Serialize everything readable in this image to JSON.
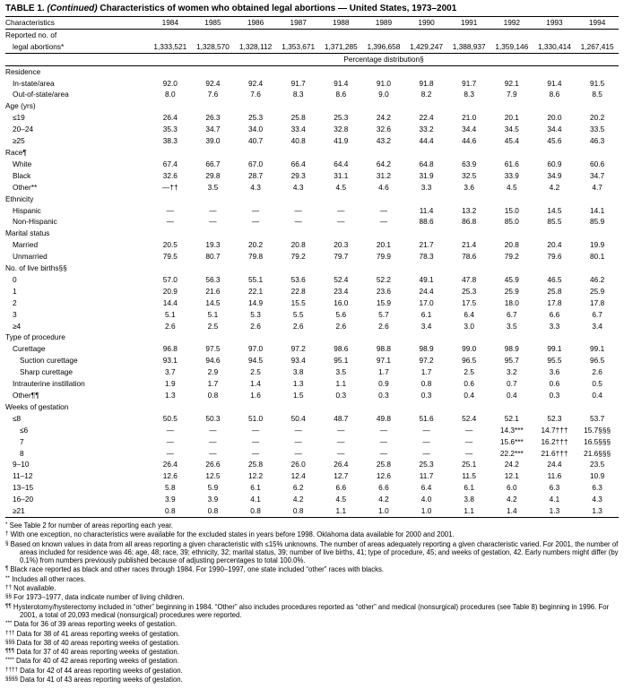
{
  "title": {
    "prefix": "TABLE 1.",
    "continued": "(Continued)",
    "text": "Characteristics of women who obtained legal abortions — United States, 1973–2001"
  },
  "table": {
    "characteristics_header": "Characteristics",
    "years": [
      "1984",
      "1985",
      "1986",
      "1987",
      "1988",
      "1989",
      "1990",
      "1991",
      "1992",
      "1993",
      "1994"
    ],
    "reported_row": {
      "label_line1": "Reported no. of",
      "label_line2": "legal abortions*",
      "values": [
        "1,333,521",
        "1,328,570",
        "1,328,112",
        "1,353,671",
        "1,371,285",
        "1,396,658",
        "1,429,247",
        "1,388,937",
        "1,359,146",
        "1,330,414",
        "1,267,415"
      ]
    },
    "percentage_header": "Percentage distribution§",
    "sections": [
      {
        "header": "Residence",
        "rows": [
          {
            "label": "In-state/area",
            "indent": 1,
            "values": [
              "92.0",
              "92.4",
              "92.4",
              "91.7",
              "91.4",
              "91.0",
              "91.8",
              "91.7",
              "92.1",
              "91.4",
              "91.5"
            ]
          },
          {
            "label": "Out-of-state/area",
            "indent": 1,
            "values": [
              "8.0",
              "7.6",
              "7.6",
              "8.3",
              "8.6",
              "9.0",
              "8.2",
              "8.3",
              "7.9",
              "8.6",
              "8.5"
            ]
          }
        ]
      },
      {
        "header": "Age (yrs)",
        "rows": [
          {
            "label": "≤19",
            "indent": 1,
            "values": [
              "26.4",
              "26.3",
              "25.3",
              "25.8",
              "25.3",
              "24.2",
              "22.4",
              "21.0",
              "20.1",
              "20.0",
              "20.2"
            ]
          },
          {
            "label": "20–24",
            "indent": 1,
            "values": [
              "35.3",
              "34.7",
              "34.0",
              "33.4",
              "32.8",
              "32.6",
              "33.2",
              "34.4",
              "34.5",
              "34.4",
              "33.5"
            ]
          },
          {
            "label": "≥25",
            "indent": 1,
            "values": [
              "38.3",
              "39.0",
              "40.7",
              "40.8",
              "41.9",
              "43.2",
              "44.4",
              "44.6",
              "45.4",
              "45.6",
              "46.3"
            ]
          }
        ]
      },
      {
        "header": "Race¶",
        "rows": [
          {
            "label": "White",
            "indent": 1,
            "values": [
              "67.4",
              "66.7",
              "67.0",
              "66.4",
              "64.4",
              "64.2",
              "64.8",
              "63.9",
              "61.6",
              "60.9",
              "60.6"
            ]
          },
          {
            "label": "Black",
            "indent": 1,
            "values": [
              "32.6",
              "29.8",
              "28.7",
              "29.3",
              "31.1",
              "31.2",
              "31.9",
              "32.5",
              "33.9",
              "34.9",
              "34.7"
            ]
          },
          {
            "label": "Other**",
            "indent": 1,
            "values": [
              "—††",
              "3.5",
              "4.3",
              "4.3",
              "4.5",
              "4.6",
              "3.3",
              "3.6",
              "4.5",
              "4.2",
              "4.7"
            ]
          }
        ]
      },
      {
        "header": "Ethnicity",
        "rows": [
          {
            "label": "Hispanic",
            "indent": 1,
            "values": [
              "—",
              "—",
              "—",
              "—",
              "—",
              "—",
              "11.4",
              "13.2",
              "15.0",
              "14.5",
              "14.1"
            ]
          },
          {
            "label": "Non-Hispanic",
            "indent": 1,
            "values": [
              "—",
              "—",
              "—",
              "—",
              "—",
              "—",
              "88.6",
              "86.8",
              "85.0",
              "85.5",
              "85.9"
            ]
          }
        ]
      },
      {
        "header": "Marital status",
        "rows": [
          {
            "label": "Married",
            "indent": 1,
            "values": [
              "20.5",
              "19.3",
              "20.2",
              "20.8",
              "20.3",
              "20.1",
              "21.7",
              "21.4",
              "20.8",
              "20.4",
              "19.9"
            ]
          },
          {
            "label": "Unmarried",
            "indent": 1,
            "values": [
              "79.5",
              "80.7",
              "79.8",
              "79.2",
              "79.7",
              "79.9",
              "78.3",
              "78.6",
              "79.2",
              "79.6",
              "80.1"
            ]
          }
        ]
      },
      {
        "header": "No. of live births§§",
        "rows": [
          {
            "label": "0",
            "indent": 1,
            "values": [
              "57.0",
              "56.3",
              "55.1",
              "53.6",
              "52.4",
              "52.2",
              "49.1",
              "47.8",
              "45.9",
              "46.5",
              "46.2"
            ]
          },
          {
            "label": "1",
            "indent": 1,
            "values": [
              "20.9",
              "21.6",
              "22.1",
              "22.8",
              "23.4",
              "23.6",
              "24.4",
              "25.3",
              "25.9",
              "25.8",
              "25.9"
            ]
          },
          {
            "label": "2",
            "indent": 1,
            "values": [
              "14.4",
              "14.5",
              "14.9",
              "15.5",
              "16.0",
              "15.9",
              "17.0",
              "17.5",
              "18.0",
              "17.8",
              "17.8"
            ]
          },
          {
            "label": "3",
            "indent": 1,
            "values": [
              "5.1",
              "5.1",
              "5.3",
              "5.5",
              "5.6",
              "5.7",
              "6.1",
              "6.4",
              "6.7",
              "6.6",
              "6.7"
            ]
          },
          {
            "label": "≥4",
            "indent": 1,
            "values": [
              "2.6",
              "2.5",
              "2.6",
              "2.6",
              "2.6",
              "2.6",
              "3.4",
              "3.0",
              "3.5",
              "3.3",
              "3.4"
            ]
          }
        ]
      },
      {
        "header": "Type of procedure",
        "rows": [
          {
            "label": "Curettage",
            "indent": 1,
            "values": [
              "96.8",
              "97.5",
              "97.0",
              "97.2",
              "98.6",
              "98.8",
              "98.9",
              "99.0",
              "98.9",
              "99.1",
              "99.1"
            ]
          },
          {
            "label": "Suction curettage",
            "indent": 2,
            "values": [
              "93.1",
              "94.6",
              "94.5",
              "93.4",
              "95.1",
              "97.1",
              "97.2",
              "96.5",
              "95.7",
              "95.5",
              "96.5"
            ]
          },
          {
            "label": "Sharp curettage",
            "indent": 2,
            "values": [
              "3.7",
              "2.9",
              "2.5",
              "3.8",
              "3.5",
              "1.7",
              "1.7",
              "2.5",
              "3.2",
              "3.6",
              "2.6"
            ]
          },
          {
            "label": "Intrauterine instillation",
            "indent": 1,
            "values": [
              "1.9",
              "1.7",
              "1.4",
              "1.3",
              "1.1",
              "0.9",
              "0.8",
              "0.6",
              "0.7",
              "0.6",
              "0.5"
            ]
          },
          {
            "label": "Other¶¶",
            "indent": 1,
            "values": [
              "1.3",
              "0.8",
              "1.6",
              "1.5",
              "0.3",
              "0.3",
              "0.3",
              "0.4",
              "0.4",
              "0.3",
              "0.4"
            ]
          }
        ]
      },
      {
        "header": "Weeks of gestation",
        "rows": [
          {
            "label": "≤8",
            "indent": 1,
            "values": [
              "50.5",
              "50.3",
              "51.0",
              "50.4",
              "48.7",
              "49.8",
              "51.6",
              "52.4",
              "52.1",
              "52.3",
              "53.7"
            ]
          },
          {
            "label": "≤6",
            "indent": 2,
            "values": [
              "—",
              "—",
              "—",
              "—",
              "—",
              "—",
              "—",
              "—",
              "14.3***",
              "14.7†††",
              "15.7§§§"
            ]
          },
          {
            "label": "7",
            "indent": 2,
            "values": [
              "—",
              "—",
              "—",
              "—",
              "—",
              "—",
              "—",
              "—",
              "15.6***",
              "16.2†††",
              "16.5§§§"
            ]
          },
          {
            "label": "8",
            "indent": 2,
            "values": [
              "—",
              "—",
              "—",
              "—",
              "—",
              "—",
              "—",
              "—",
              "22.2***",
              "21.6†††",
              "21.6§§§"
            ]
          },
          {
            "label": "9–10",
            "indent": 1,
            "values": [
              "26.4",
              "26.6",
              "25.8",
              "26.0",
              "26.4",
              "25.8",
              "25.3",
              "25.1",
              "24.2",
              "24.4",
              "23.5"
            ]
          },
          {
            "label": "11–12",
            "indent": 1,
            "values": [
              "12.6",
              "12.5",
              "12.2",
              "12.4",
              "12.7",
              "12.6",
              "11.7",
              "11.5",
              "12.1",
              "11.6",
              "10.9"
            ]
          },
          {
            "label": "13–15",
            "indent": 1,
            "values": [
              "5.8",
              "5.9",
              "6.1",
              "6.2",
              "6.6",
              "6.6",
              "6.4",
              "6.1",
              "6.0",
              "6.3",
              "6.3"
            ]
          },
          {
            "label": "16–20",
            "indent": 1,
            "values": [
              "3.9",
              "3.9",
              "4.1",
              "4.2",
              "4.5",
              "4.2",
              "4.0",
              "3.8",
              "4.2",
              "4.1",
              "4.3"
            ]
          },
          {
            "label": "≥21",
            "indent": 1,
            "values": [
              "0.8",
              "0.8",
              "0.8",
              "0.8",
              "1.1",
              "1.0",
              "1.0",
              "1.1",
              "1.4",
              "1.3",
              "1.3"
            ]
          }
        ]
      }
    ]
  },
  "footnotes": [
    {
      "marker": "*",
      "text": "See Table 2 for number of areas reporting each year."
    },
    {
      "marker": "†",
      "text": "With one exception, no characteristics were available for the excluded states in years before 1998. Oklahoma data available for 2000 and 2001."
    },
    {
      "marker": "§",
      "text": "Based on known values in data from all areas reporting a given characteristic with ≤15% unknowns. The number of areas adequately reporting a given characteristic varied. For 2001, the number of areas included for residence was 46; age, 48; race, 39; ethnicity, 32; marital status, 39; number of live births, 41; type of procedure, 45; and weeks of gestation, 42. Early numbers might differ (by 0.1%) from numbers previously published because of adjusting percentages to total 100.0%."
    },
    {
      "marker": "¶",
      "text": "Black race reported as black and other races through 1984. For 1990–1997, one state included “other” races with blacks."
    },
    {
      "marker": "**",
      "text": "Includes all other races."
    },
    {
      "marker": "††",
      "text": "Not available."
    },
    {
      "marker": "§§",
      "text": "For 1973–1977, data indicate number of living children."
    },
    {
      "marker": "¶¶",
      "text": "Hysterotomy/hysterectomy included in “other” beginning in 1984. “Other” also includes procedures reported as “other” and medical (nonsurgical) procedures (see Table 8) beginning in 1996. For 2001, a total of 20,093 medical (nonsurgical) procedures were reported."
    },
    {
      "marker": "***",
      "text": "Data for 36 of 39 areas reporting weeks of gestation."
    },
    {
      "marker": "†††",
      "text": "Data for 38 of 41 areas reporting weeks of gestation."
    },
    {
      "marker": "§§§",
      "text": "Data for 38 of 40 areas reporting weeks of gestation."
    },
    {
      "marker": "¶¶¶",
      "text": "Data for 37 of 40 areas reporting weeks of gestation."
    },
    {
      "marker": "****",
      "text": "Data for 40 of 42 areas reporting weeks of gestation."
    },
    {
      "marker": "††††",
      "text": "Data for 42 of 44 areas reporting weeks of gestation."
    },
    {
      "marker": "§§§§",
      "text": "Data for 41 of 43 areas reporting weeks of gestation."
    }
  ]
}
